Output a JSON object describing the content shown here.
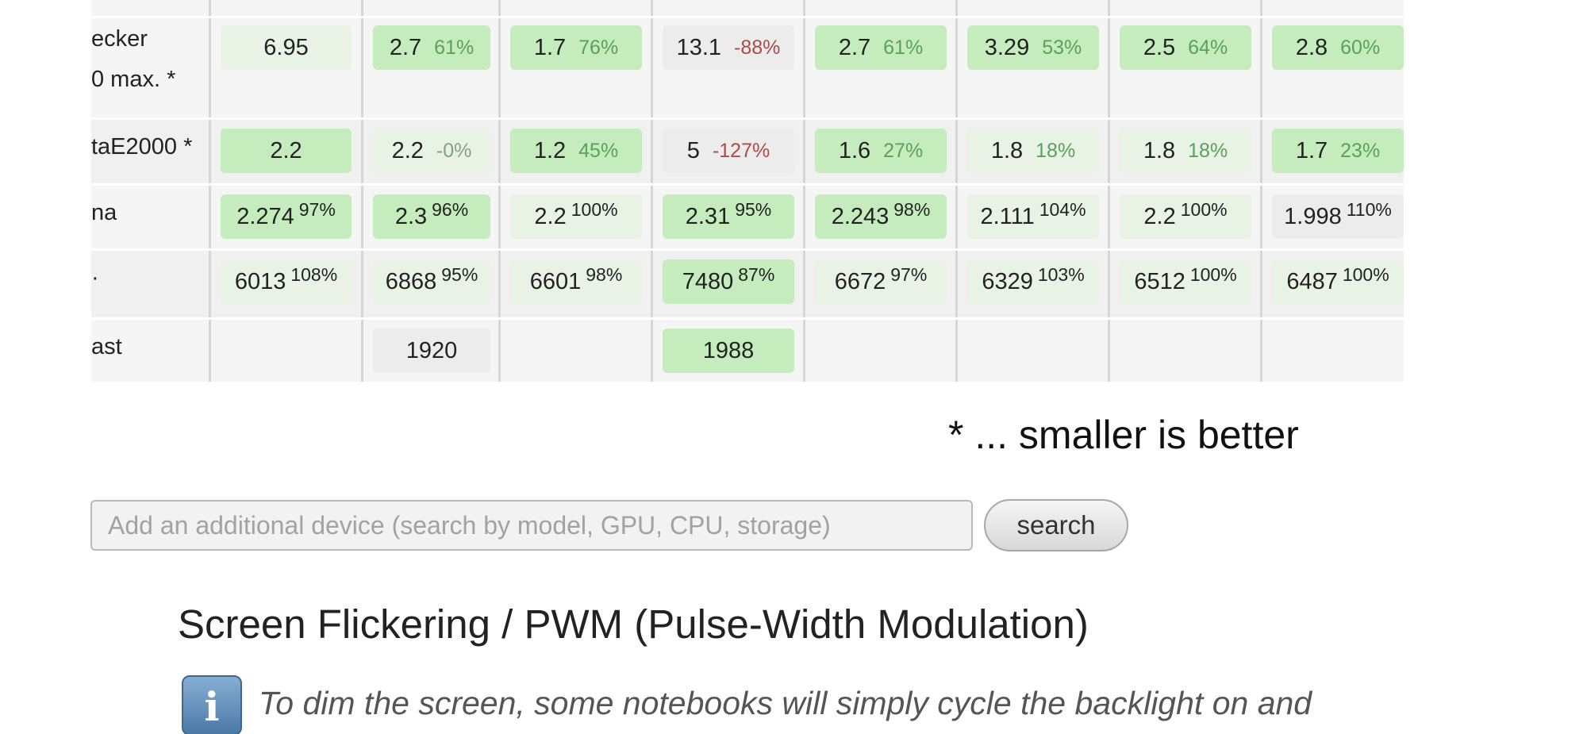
{
  "table": {
    "rows": [
      {
        "key": "flicker",
        "label_lines": [
          "ecker",
          "0 max. *"
        ],
        "cells": [
          {
            "value": "6.95",
            "pct": "",
            "pct_style": "none",
            "shade": "pale"
          },
          {
            "value": "2.7",
            "pct": "61%",
            "pct_style": "good",
            "shade": "strong"
          },
          {
            "value": "1.7",
            "pct": "76%",
            "pct_style": "good",
            "shade": "strong"
          },
          {
            "value": "13.1",
            "pct": "-88%",
            "pct_style": "bad",
            "shade": "neutral"
          },
          {
            "value": "2.7",
            "pct": "61%",
            "pct_style": "good",
            "shade": "strong"
          },
          {
            "value": "3.29",
            "pct": "53%",
            "pct_style": "good",
            "shade": "strong"
          },
          {
            "value": "2.5",
            "pct": "64%",
            "pct_style": "good",
            "shade": "strong"
          },
          {
            "value": "2.8",
            "pct": "60%",
            "pct_style": "good",
            "shade": "strong"
          }
        ]
      },
      {
        "key": "deltae",
        "label_lines": [
          "taE2000 *"
        ],
        "cells": [
          {
            "value": "2.2",
            "pct": "",
            "pct_style": "none",
            "shade": "strong"
          },
          {
            "value": "2.2",
            "pct": "-0%",
            "pct_style": "muted",
            "shade": "pale"
          },
          {
            "value": "1.2",
            "pct": "45%",
            "pct_style": "good",
            "shade": "strong"
          },
          {
            "value": "5",
            "pct": "-127%",
            "pct_style": "bad",
            "shade": "neutral"
          },
          {
            "value": "1.6",
            "pct": "27%",
            "pct_style": "good",
            "shade": "strong"
          },
          {
            "value": "1.8",
            "pct": "18%",
            "pct_style": "good",
            "shade": "pale"
          },
          {
            "value": "1.8",
            "pct": "18%",
            "pct_style": "good",
            "shade": "pale"
          },
          {
            "value": "1.7",
            "pct": "23%",
            "pct_style": "good",
            "shade": "strong"
          }
        ]
      },
      {
        "key": "gamma",
        "label_lines": [
          "na"
        ],
        "cells": [
          {
            "value": "2.274",
            "pct": "97%",
            "pct_style": "sup",
            "shade": "strong"
          },
          {
            "value": "2.3",
            "pct": "96%",
            "pct_style": "sup",
            "shade": "strong"
          },
          {
            "value": "2.2",
            "pct": "100%",
            "pct_style": "sup",
            "shade": "pale"
          },
          {
            "value": "2.31",
            "pct": "95%",
            "pct_style": "sup",
            "shade": "strong"
          },
          {
            "value": "2.243",
            "pct": "98%",
            "pct_style": "sup",
            "shade": "strong"
          },
          {
            "value": "2.111",
            "pct": "104%",
            "pct_style": "sup",
            "shade": "pale"
          },
          {
            "value": "2.2",
            "pct": "100%",
            "pct_style": "sup",
            "shade": "pale"
          },
          {
            "value": "1.998",
            "pct": "110%",
            "pct_style": "sup",
            "shade": "neutral"
          }
        ]
      },
      {
        "key": "cct",
        "label_lines": [
          "·"
        ],
        "cells": [
          {
            "value": "6013",
            "pct": "108%",
            "pct_style": "sup",
            "shade": "pale"
          },
          {
            "value": "6868",
            "pct": "95%",
            "pct_style": "sup",
            "shade": "pale"
          },
          {
            "value": "6601",
            "pct": "98%",
            "pct_style": "sup",
            "shade": "pale"
          },
          {
            "value": "7480",
            "pct": "87%",
            "pct_style": "sup",
            "shade": "strong"
          },
          {
            "value": "6672",
            "pct": "97%",
            "pct_style": "sup",
            "shade": "pale"
          },
          {
            "value": "6329",
            "pct": "103%",
            "pct_style": "sup",
            "shade": "pale"
          },
          {
            "value": "6512",
            "pct": "100%",
            "pct_style": "sup",
            "shade": "pale"
          },
          {
            "value": "6487",
            "pct": "100%",
            "pct_style": "sup",
            "shade": "pale"
          }
        ]
      },
      {
        "key": "contrast",
        "label_lines": [
          "ast"
        ],
        "cells": [
          null,
          {
            "value": "1920",
            "pct": "",
            "pct_style": "none",
            "shade": "neutral"
          },
          null,
          {
            "value": "1988",
            "pct": "",
            "pct_style": "none",
            "shade": "strong"
          },
          null,
          null,
          null,
          null
        ]
      }
    ]
  },
  "footnote": "* ... smaller is better",
  "search": {
    "placeholder": "Add an additional device (search by model, GPU, CPU, storage)",
    "button_label": "search"
  },
  "section": {
    "heading": "Screen Flickering / PWM (Pulse-Width Modulation)",
    "info_icon": "info-icon",
    "info_glyph": "i",
    "intro": "To dim the screen, some notebooks will simply cycle the backlight on and"
  },
  "colors": {
    "cell_strong": "#c4ecbc",
    "cell_pale": "#d8f0d2",
    "cell_neutral": "#ececec",
    "positive_pct": "#5aa15a",
    "negative_pct": "#b04a4a"
  }
}
